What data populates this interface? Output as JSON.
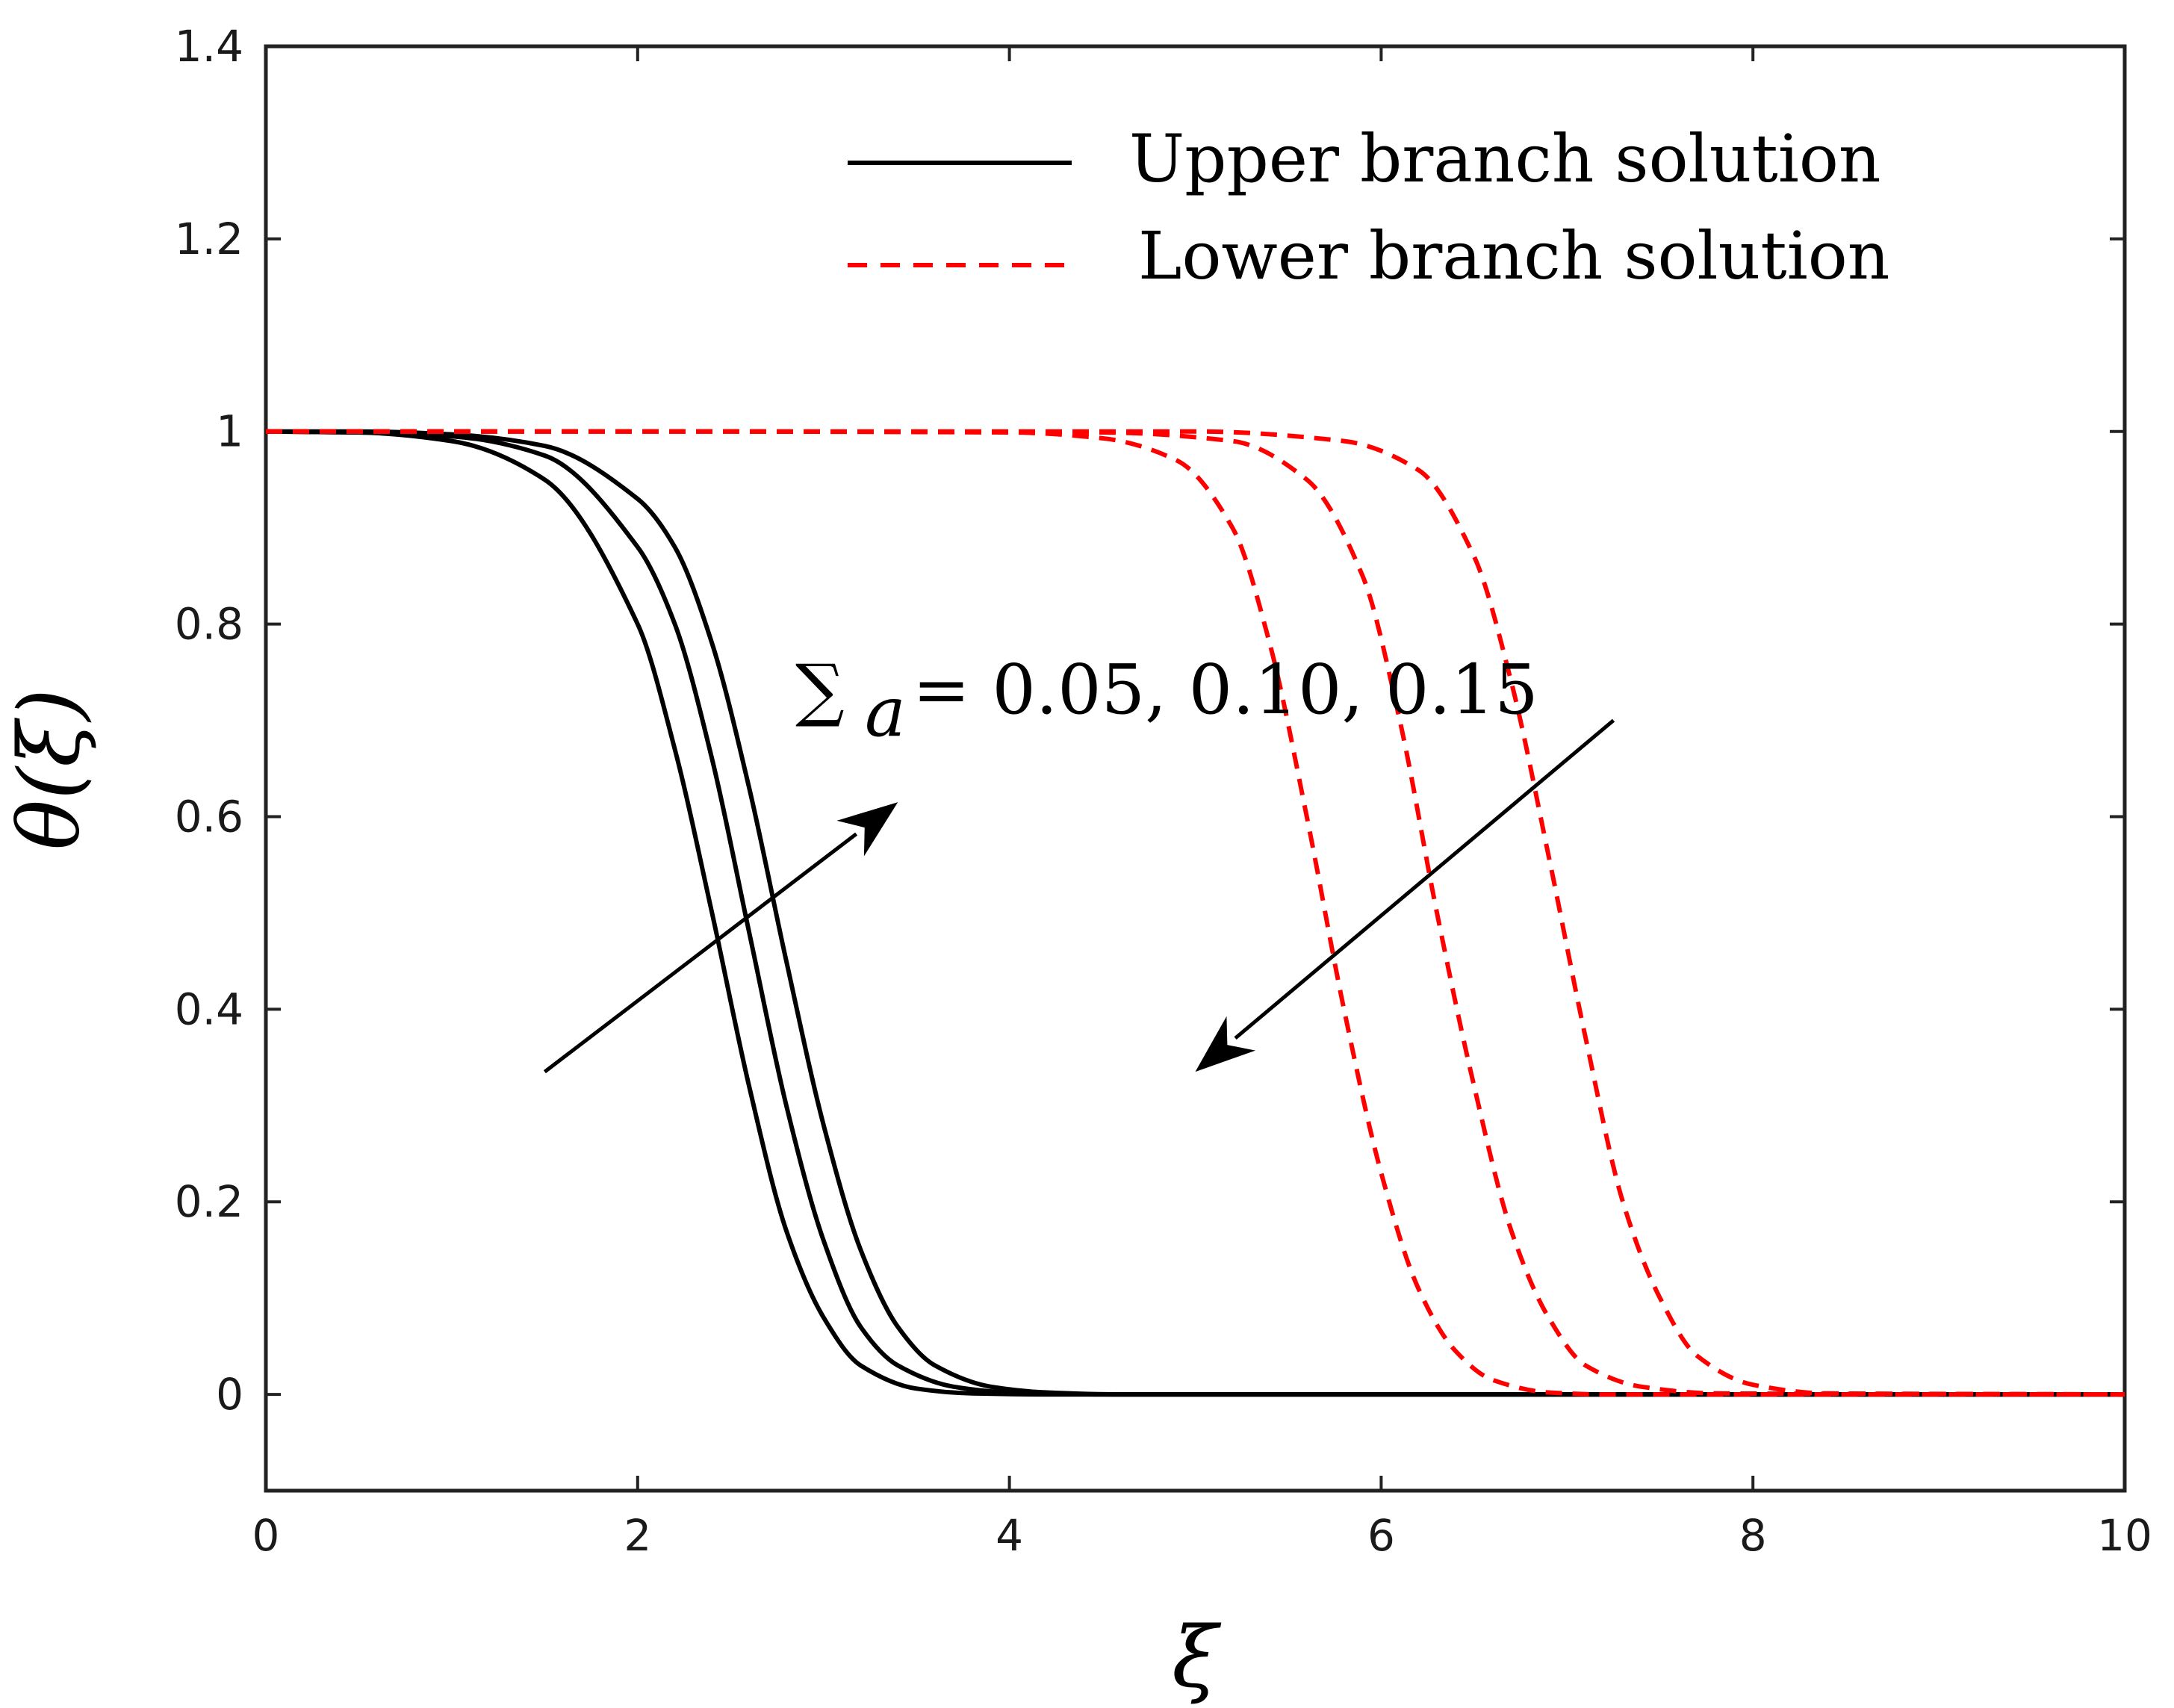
{
  "chart_data": {
    "type": "line",
    "title": "",
    "xlabel": "ξ",
    "ylabel": "θ(ξ)",
    "xlim": [
      0,
      10
    ],
    "ylim": [
      -0.1,
      1.4
    ],
    "xticks": [
      0,
      2,
      4,
      6,
      8,
      10
    ],
    "xtick_labels": [
      "0",
      "2",
      "4",
      "6",
      "8",
      "10"
    ],
    "yticks": [
      0,
      0.2,
      0.4,
      0.6,
      0.8,
      1,
      1.2,
      1.4
    ],
    "ytick_labels": [
      "0",
      "0.2",
      "0.4",
      "0.6",
      "0.8",
      "1",
      "1.2",
      "1.4"
    ],
    "grid": false,
    "legend_position": "top-right",
    "legend": [
      {
        "label": "Upper branch solution",
        "color": "#000000",
        "style": "solid"
      },
      {
        "label": "Lower branch solution",
        "color": "#ff0000",
        "style": "dashed"
      }
    ],
    "annotation": {
      "symbol": "∑",
      "subscript": "a",
      "text": "= 0.05, 0.10, 0.15"
    },
    "series": [
      {
        "branch": "upper",
        "color": "#000000",
        "dash": "solid",
        "x": [
          0,
          0.5,
          1.0,
          1.5,
          2.0,
          2.2,
          2.4,
          2.6,
          2.8,
          3.0,
          3.2,
          3.5,
          3.8,
          4.2,
          5,
          10
        ],
        "y": [
          1.0,
          0.999,
          0.99,
          0.95,
          0.8,
          0.67,
          0.5,
          0.32,
          0.17,
          0.08,
          0.03,
          0.006,
          0.001,
          0,
          0,
          0
        ]
      },
      {
        "branch": "upper",
        "color": "#000000",
        "dash": "solid",
        "x": [
          0,
          0.5,
          1.0,
          1.5,
          2.0,
          2.2,
          2.4,
          2.6,
          2.8,
          3.0,
          3.2,
          3.4,
          3.7,
          4.0,
          4.5,
          5,
          10
        ],
        "y": [
          1.0,
          0.999,
          0.995,
          0.975,
          0.88,
          0.8,
          0.66,
          0.48,
          0.3,
          0.16,
          0.07,
          0.03,
          0.008,
          0.002,
          0,
          0,
          0
        ]
      },
      {
        "branch": "upper",
        "color": "#000000",
        "dash": "solid",
        "x": [
          0,
          0.5,
          1.0,
          1.5,
          2.0,
          2.2,
          2.4,
          2.6,
          2.8,
          3.0,
          3.2,
          3.4,
          3.6,
          3.9,
          4.2,
          4.6,
          5,
          10
        ],
        "y": [
          1.0,
          1.0,
          0.997,
          0.985,
          0.93,
          0.88,
          0.78,
          0.63,
          0.45,
          0.28,
          0.15,
          0.07,
          0.03,
          0.008,
          0.002,
          0,
          0,
          0
        ]
      },
      {
        "branch": "lower",
        "color": "#ff0000",
        "dash": "dashed",
        "x": [
          0,
          2,
          4,
          4.5,
          4.9,
          5.2,
          5.4,
          5.6,
          5.8,
          6.0,
          6.2,
          6.4,
          6.6,
          6.9,
          7.2,
          10
        ],
        "y": [
          1.0,
          1.0,
          0.999,
          0.993,
          0.97,
          0.9,
          0.78,
          0.6,
          0.4,
          0.23,
          0.11,
          0.045,
          0.015,
          0.002,
          0,
          0
        ]
      },
      {
        "branch": "lower",
        "color": "#ff0000",
        "dash": "dashed",
        "x": [
          0,
          2,
          4.5,
          5.2,
          5.6,
          5.9,
          6.1,
          6.3,
          6.5,
          6.7,
          6.9,
          7.1,
          7.4,
          7.8,
          10
        ],
        "y": [
          1.0,
          1.0,
          0.999,
          0.99,
          0.95,
          0.85,
          0.7,
          0.5,
          0.32,
          0.17,
          0.08,
          0.03,
          0.008,
          0.001,
          0
        ]
      },
      {
        "branch": "lower",
        "color": "#ff0000",
        "dash": "dashed",
        "x": [
          0,
          2,
          5,
          5.8,
          6.2,
          6.5,
          6.7,
          6.9,
          7.1,
          7.3,
          7.5,
          7.7,
          8.0,
          8.4,
          10
        ],
        "y": [
          1.0,
          1.0,
          1.0,
          0.99,
          0.96,
          0.87,
          0.74,
          0.56,
          0.37,
          0.2,
          0.1,
          0.04,
          0.01,
          0.001,
          0
        ]
      }
    ],
    "arrows": [
      {
        "from": [
          1.5,
          0.335
        ],
        "to": [
          3.4,
          0.615
        ],
        "color": "#000000"
      },
      {
        "from": [
          7.25,
          0.7
        ],
        "to": [
          5.0,
          0.335
        ],
        "color": "#000000"
      }
    ]
  }
}
